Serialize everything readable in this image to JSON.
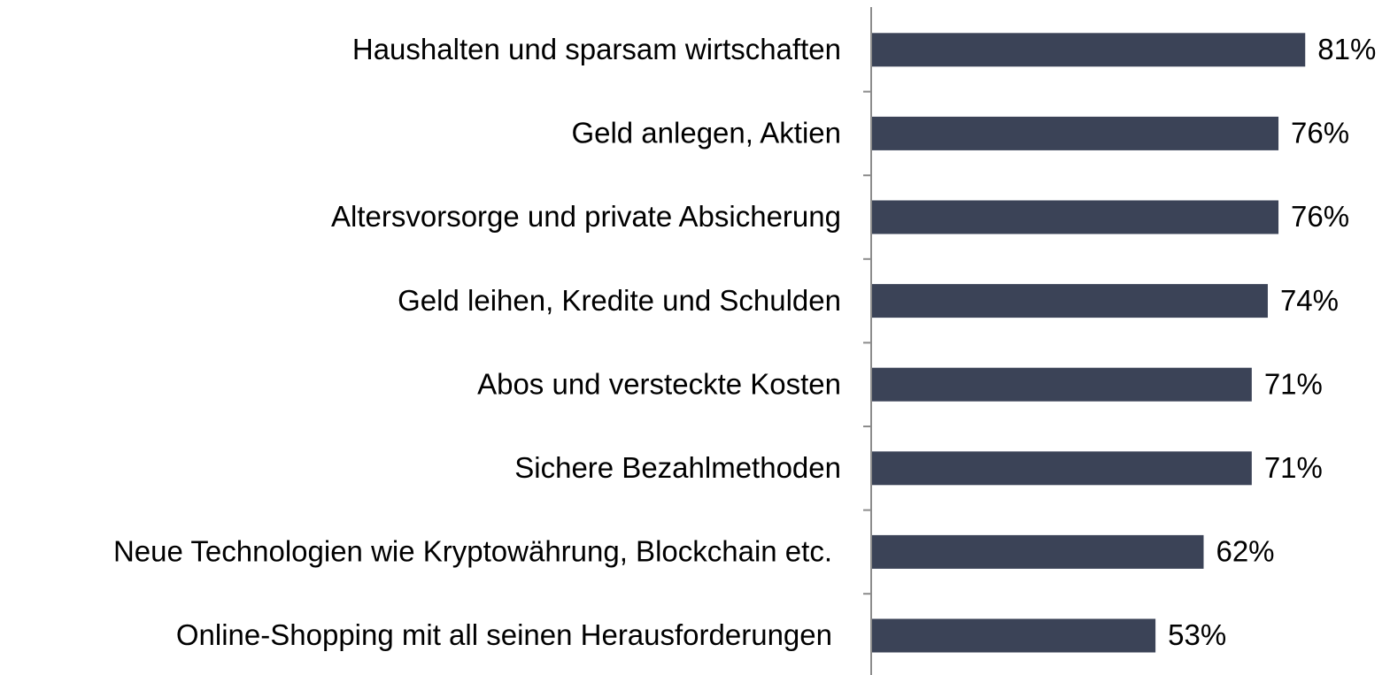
{
  "chart_data": {
    "type": "bar",
    "orientation": "horizontal",
    "categories": [
      "Haushalten und sparsam wirtschaften",
      "Geld anlegen, Aktien",
      "Altersvorsorge und private Absicherung",
      "Geld leihen, Kredite und Schulden",
      "Abos und versteckte Kosten",
      "Sichere Bezahlmethoden",
      "Neue Technologien wie Kryptowährung, Blockchain etc.",
      "Online-Shopping mit all seinen Herausforderungen"
    ],
    "values": [
      81,
      76,
      76,
      74,
      71,
      71,
      62,
      53
    ],
    "value_labels": [
      "81%",
      "76%",
      "76%",
      "74%",
      "71%",
      "71%",
      "62%",
      "53%"
    ],
    "color": "#3b4357"
  }
}
